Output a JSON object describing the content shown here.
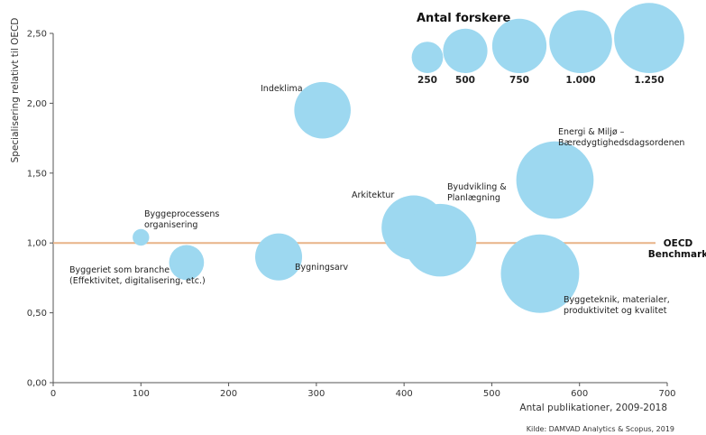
{
  "chart_data": {
    "type": "scatter",
    "subtype": "bubble",
    "xlabel": "Antal publikationer, 2009-2018",
    "ylabel": "Specialisering relativt til OECD",
    "xlim": [
      0,
      700
    ],
    "ylim": [
      0,
      2.5
    ],
    "x_ticks": [
      "0",
      "100",
      "200",
      "300",
      "400",
      "500",
      "600",
      "700"
    ],
    "y_ticks": [
      "0,00",
      "0,50",
      "1,00",
      "1,50",
      "2,00",
      "2,50"
    ],
    "grid": false,
    "bubble_color": "#9dd8f0",
    "benchmark": {
      "value": 1.0,
      "label_lines": [
        "OECD",
        "Benchmark"
      ],
      "color": "#e8b488"
    },
    "size_legend": {
      "title": "Antal forskere",
      "placement": "top-right",
      "items": [
        {
          "label": "250",
          "value": 250
        },
        {
          "label": "500",
          "value": 500
        },
        {
          "label": "750",
          "value": 750
        },
        {
          "label": "1.000",
          "value": 1000
        },
        {
          "label": "1.250",
          "value": 1250
        }
      ]
    },
    "points": [
      {
        "label_lines": [
          "Byggeprocessens",
          "organisering"
        ],
        "x": 100,
        "y": 1.04,
        "size": 70
      },
      {
        "label_lines": [
          "Byggeriet som branche",
          "(Effektivitet, digitalisering, etc.)"
        ],
        "x": 152,
        "y": 0.86,
        "size": 310
      },
      {
        "label_lines": [
          "Bygningsarv"
        ],
        "x": 257,
        "y": 0.9,
        "size": 560
      },
      {
        "label_lines": [
          "Indeklima"
        ],
        "x": 307,
        "y": 1.95,
        "size": 810
      },
      {
        "label_lines": [
          "Arkitektur"
        ],
        "x": 411,
        "y": 1.11,
        "size": 1050
      },
      {
        "label_lines": [
          "Byudvikling &",
          "Planlægning"
        ],
        "x": 441,
        "y": 1.02,
        "size": 1340
      },
      {
        "label_lines": [
          "Energi & Miljø –",
          "Bæredygtighedsdagsordenen"
        ],
        "x": 572,
        "y": 1.45,
        "size": 1520
      },
      {
        "label_lines": [
          "Byggeteknik, materialer,",
          "produktivitet og kvalitet"
        ],
        "x": 555,
        "y": 0.78,
        "size": 1560
      }
    ]
  },
  "source": "Kilde: DAMVAD Analytics & Scopus, 2019"
}
